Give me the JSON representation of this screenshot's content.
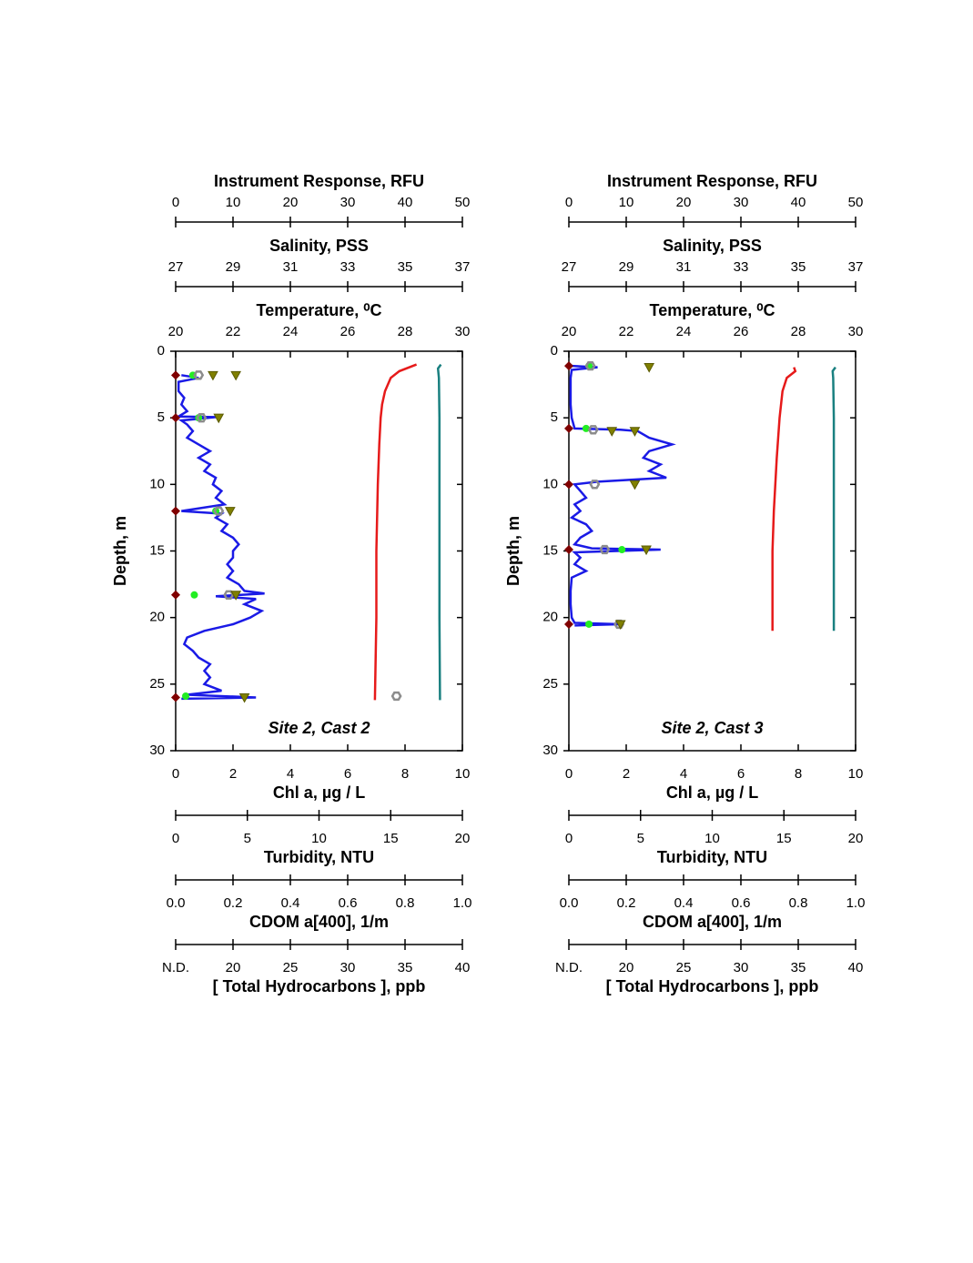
{
  "chart_data": [
    {
      "type": "profile",
      "annotation": "Site 2, Cast 2",
      "ylabel": "Depth, m",
      "ylim": [
        0,
        30
      ],
      "yticks": [
        0,
        5,
        10,
        15,
        20,
        25,
        30
      ],
      "axes": [
        {
          "label": "Instrument Response, RFU",
          "position": "top",
          "color": "#1a1ae6",
          "marker": "line",
          "xlim": [
            0,
            50
          ],
          "xticks": [
            0,
            10,
            20,
            30,
            40,
            50
          ],
          "depths": [
            1.8,
            2,
            2.3,
            3,
            3.5,
            4,
            4.5,
            4.9,
            4.95,
            5.2,
            5.5,
            6,
            6.5,
            7,
            7.5,
            8,
            8.5,
            9,
            9.5,
            10,
            10.5,
            11,
            11.5,
            12,
            12.2,
            12.5,
            13,
            13.5,
            14,
            14.5,
            15,
            15.5,
            16,
            16.5,
            17,
            17.5,
            18,
            18.2,
            18.4,
            18.6,
            19,
            19.5,
            20,
            20.5,
            21,
            21.5,
            22,
            22.5,
            23,
            23.5,
            24,
            24.5,
            25,
            25.5,
            25.8,
            26,
            26.1
          ],
          "values": [
            1,
            4,
            0.5,
            0.5,
            1.5,
            1,
            2,
            0.5,
            7,
            1,
            2,
            3,
            2,
            4,
            6,
            4,
            6,
            5,
            7,
            6.5,
            8,
            7,
            8.5,
            1,
            8,
            7,
            9,
            8,
            10,
            11,
            10,
            10,
            9,
            10,
            9,
            11,
            12,
            15.5,
            7,
            14,
            12,
            15,
            13,
            10,
            5,
            2,
            1.5,
            3,
            4,
            6,
            5,
            6,
            5,
            8,
            2,
            14,
            1
          ]
        },
        {
          "label": "Salinity, PSS",
          "position": "top",
          "color": "#1a8080",
          "marker": "line",
          "xlim": [
            27,
            37
          ],
          "xticks": [
            27,
            29,
            31,
            33,
            35,
            37
          ],
          "depths": [
            1,
            1.3,
            2,
            5,
            10,
            15,
            20,
            26.2
          ],
          "values": [
            36.25,
            36.15,
            36.18,
            36.2,
            36.2,
            36.2,
            36.2,
            36.22
          ]
        },
        {
          "label": "Temperature, ⁰C",
          "position": "top",
          "color": "#e61a1a",
          "marker": "line",
          "xlim": [
            20,
            30
          ],
          "xticks": [
            20,
            22,
            24,
            26,
            28,
            30
          ],
          "depths": [
            1,
            1.5,
            2,
            3,
            4,
            5,
            7,
            10,
            15,
            20,
            26.2
          ],
          "values": [
            28.4,
            27.8,
            27.5,
            27.3,
            27.2,
            27.15,
            27.1,
            27.05,
            27,
            27,
            26.95
          ]
        },
        {
          "label": "Chl a, µg / L",
          "position": "bottom",
          "color": "#22ee22",
          "marker": "circle",
          "xlim": [
            0,
            10
          ],
          "xticks": [
            0,
            2,
            4,
            6,
            8,
            10
          ],
          "depths": [
            1.8,
            5,
            12,
            18.3,
            25.9
          ],
          "values": [
            0.6,
            0.8,
            1.4,
            0.65,
            0.35
          ]
        },
        {
          "label": "Turbidity, NTU",
          "position": "bottom",
          "color": "#8c8c8c",
          "marker": "hexagon",
          "xlim": [
            0,
            20
          ],
          "xticks": [
            0,
            5,
            10,
            15,
            20
          ],
          "depths": [
            1.8,
            5,
            12,
            18.3,
            25.9
          ],
          "values": [
            1.6,
            1.8,
            3,
            3.7,
            15.4
          ]
        },
        {
          "label": "CDOM a[400], 1/m",
          "position": "bottom",
          "color": "#808000",
          "marker": "triangle",
          "xlim": [
            0,
            1
          ],
          "xticks": [
            {
              "value": 0,
              "label": "0.0"
            },
            0.2,
            0.4,
            0.6,
            0.8,
            {
              "value": 1,
              "label": "1.0"
            }
          ],
          "depths": [
            1.8,
            1.8,
            5,
            12,
            18.3,
            26
          ],
          "values": [
            0.13,
            0.21,
            0.15,
            0.19,
            0.21,
            0.24
          ]
        },
        {
          "label": "[ Total Hydrocarbons ], ppb",
          "position": "bottom",
          "color": "#800000",
          "marker": "diamond",
          "xlim": [
            15,
            40
          ],
          "xticks": [
            {
              "value": 15,
              "label": "N.D."
            },
            20,
            25,
            30,
            35,
            40
          ],
          "depths": [
            1.8,
            5,
            12,
            18.3,
            26
          ],
          "values": [
            15,
            15,
            15,
            15,
            15
          ]
        }
      ]
    },
    {
      "type": "profile",
      "annotation": "Site 2, Cast 3",
      "ylabel": "Depth, m",
      "ylim": [
        0,
        30
      ],
      "yticks": [
        0,
        5,
        10,
        15,
        20,
        25,
        30
      ],
      "axes": [
        {
          "label": "Instrument Response, RFU",
          "position": "top",
          "color": "#1a1ae6",
          "marker": "line",
          "xlim": [
            0,
            50
          ],
          "xticks": [
            0,
            10,
            20,
            30,
            40,
            50
          ],
          "depths": [
            1.1,
            1.2,
            1.4,
            2,
            3,
            4,
            5,
            5.8,
            5.9,
            6,
            6.5,
            7,
            7.5,
            8,
            8.5,
            9,
            9.5,
            9.8,
            10,
            10.5,
            11,
            11.5,
            12,
            12.5,
            13,
            13.5,
            14,
            14.5,
            14.8,
            14.9,
            15.1,
            15.5,
            16,
            16.5,
            17,
            18,
            19,
            20,
            20.4,
            20.5,
            20.6
          ],
          "values": [
            0.5,
            5,
            0.5,
            0.3,
            0.3,
            0.3,
            0.5,
            1,
            9,
            12,
            14,
            18,
            14,
            13,
            16,
            14,
            17,
            5,
            1,
            2,
            3,
            1,
            2,
            0.5,
            3,
            4,
            2,
            1,
            4,
            16,
            1,
            2,
            1,
            3,
            0.5,
            0.3,
            0.3,
            0.5,
            1,
            9,
            1
          ]
        },
        {
          "label": "Salinity, PSS",
          "position": "top",
          "color": "#1a8080",
          "marker": "line",
          "xlim": [
            27,
            37
          ],
          "xticks": [
            27,
            29,
            31,
            33,
            35,
            37
          ],
          "depths": [
            1.2,
            1.5,
            2,
            5,
            10,
            15,
            21
          ],
          "values": [
            36.3,
            36.2,
            36.22,
            36.24,
            36.24,
            36.24,
            36.24
          ]
        },
        {
          "label": "Temperature, ⁰C",
          "position": "top",
          "color": "#e61a1a",
          "marker": "line",
          "xlim": [
            20,
            30
          ],
          "xticks": [
            20,
            22,
            24,
            26,
            28,
            30
          ],
          "depths": [
            1.2,
            1.5,
            2,
            3,
            5,
            8,
            12,
            15,
            21
          ],
          "values": [
            27.85,
            27.9,
            27.6,
            27.45,
            27.35,
            27.25,
            27.15,
            27.1,
            27.1
          ]
        },
        {
          "label": "Chl a, µg / L",
          "position": "bottom",
          "color": "#22ee22",
          "marker": "circle",
          "xlim": [
            0,
            10
          ],
          "xticks": [
            0,
            2,
            4,
            6,
            8,
            10
          ],
          "depths": [
            1.1,
            5.8,
            14.9,
            20.5
          ],
          "values": [
            0.7,
            0.6,
            1.85,
            0.7
          ]
        },
        {
          "label": "Turbidity, NTU",
          "position": "bottom",
          "color": "#8c8c8c",
          "marker": "hexagon",
          "xlim": [
            0,
            20
          ],
          "xticks": [
            0,
            5,
            10,
            15,
            20
          ],
          "depths": [
            1.1,
            5.9,
            10,
            14.9,
            20.5
          ],
          "values": [
            1.5,
            1.7,
            1.8,
            2.5,
            3.5
          ]
        },
        {
          "label": "CDOM a[400], 1/m",
          "position": "bottom",
          "color": "#808000",
          "marker": "triangle",
          "xlim": [
            0,
            1
          ],
          "xticks": [
            {
              "value": 0,
              "label": "0.0"
            },
            0.2,
            0.4,
            0.6,
            0.8,
            {
              "value": 1,
              "label": "1.0"
            }
          ],
          "depths": [
            1.2,
            6,
            6,
            10,
            14.9,
            20.5
          ],
          "values": [
            0.28,
            0.15,
            0.23,
            0.23,
            0.27,
            0.18
          ]
        },
        {
          "label": "[ Total Hydrocarbons ], ppb",
          "position": "bottom",
          "color": "#800000",
          "marker": "diamond",
          "xlim": [
            15,
            40
          ],
          "xticks": [
            {
              "value": 15,
              "label": "N.D."
            },
            20,
            25,
            30,
            35,
            40
          ],
          "depths": [
            1.1,
            5.8,
            10,
            14.9,
            20.5
          ],
          "values": [
            15,
            15,
            15,
            15,
            15
          ]
        }
      ]
    }
  ]
}
